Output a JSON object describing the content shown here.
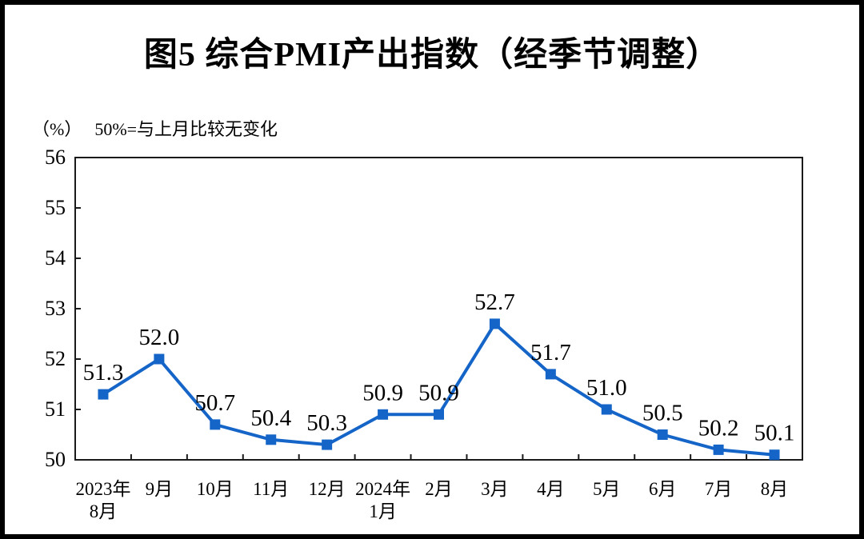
{
  "chart_data": {
    "type": "line",
    "title": "图5  综合PMI产出指数（经季节调整）",
    "unit_label": "（%）",
    "note": "50%=与上月比较无变化",
    "categories": [
      [
        "2023年",
        "8月"
      ],
      [
        "9月"
      ],
      [
        "10月"
      ],
      [
        "11月"
      ],
      [
        "12月"
      ],
      [
        "2024年",
        "1月"
      ],
      [
        "2月"
      ],
      [
        "3月"
      ],
      [
        "4月"
      ],
      [
        "5月"
      ],
      [
        "6月"
      ],
      [
        "7月"
      ],
      [
        "8月"
      ]
    ],
    "values": [
      51.3,
      52.0,
      50.7,
      50.4,
      50.3,
      50.9,
      50.9,
      52.7,
      51.7,
      51.0,
      50.5,
      50.2,
      50.1
    ],
    "value_labels": [
      "51.3",
      "52.0",
      "50.7",
      "50.4",
      "50.3",
      "50.9",
      "50.9",
      "52.7",
      "51.7",
      "51.0",
      "50.5",
      "50.2",
      "50.1"
    ],
    "ylim": [
      50,
      56
    ],
    "yticks": [
      50,
      51,
      52,
      53,
      54,
      55,
      56
    ],
    "grid": false,
    "legend": "none",
    "marker": "square",
    "line_color": "#1565c8",
    "text_color": "#000000",
    "axis_color": "#1a1a1a"
  }
}
